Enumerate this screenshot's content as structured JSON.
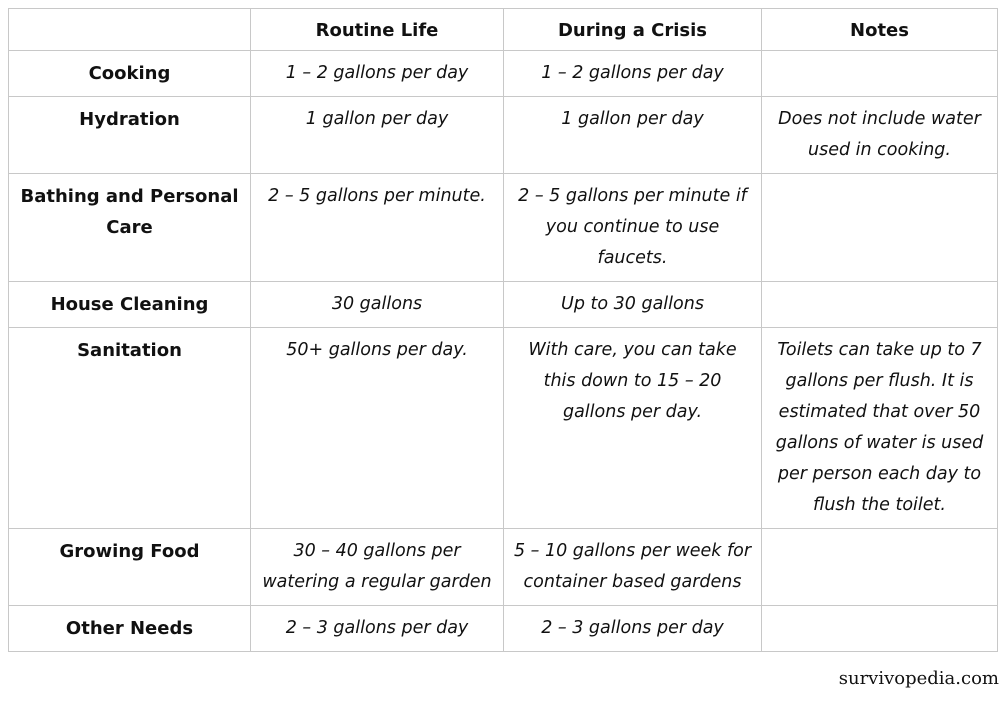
{
  "table": {
    "headers": [
      "",
      "Routine Life",
      "During a Crisis",
      "Notes"
    ],
    "rows": [
      {
        "category": "Cooking",
        "routine": "1 – 2 gallons per day",
        "crisis": "1 – 2 gallons per day",
        "notes": ""
      },
      {
        "category": "Hydration",
        "routine": "1 gallon per day",
        "crisis": "1 gallon per day",
        "notes": "Does not include water used in cooking."
      },
      {
        "category": "Bathing and Personal Care",
        "routine": "2 – 5 gallons per minute.",
        "crisis": "2 – 5 gallons per minute if you continue to use faucets.",
        "notes": ""
      },
      {
        "category": "House Cleaning",
        "routine": "30 gallons",
        "crisis": "Up to 30 gallons",
        "notes": ""
      },
      {
        "category": "Sanitation",
        "routine": "50+ gallons per day.",
        "crisis": "With care, you can take this down to 15 – 20 gallons per day.",
        "notes": "Toilets can take up to 7 gallons per flush. It is estimated that over 50 gallons of water is used per person each day to flush the toilet."
      },
      {
        "category": "Growing Food",
        "routine": "30 – 40 gallons per watering a regular garden",
        "crisis": "5 – 10 gallons per week for container based gardens",
        "notes": ""
      },
      {
        "category": "Other Needs",
        "routine": "2 – 3 gallons per day",
        "crisis": "2 – 3 gallons per day",
        "notes": ""
      }
    ]
  },
  "watermark": "survivopedia.com"
}
